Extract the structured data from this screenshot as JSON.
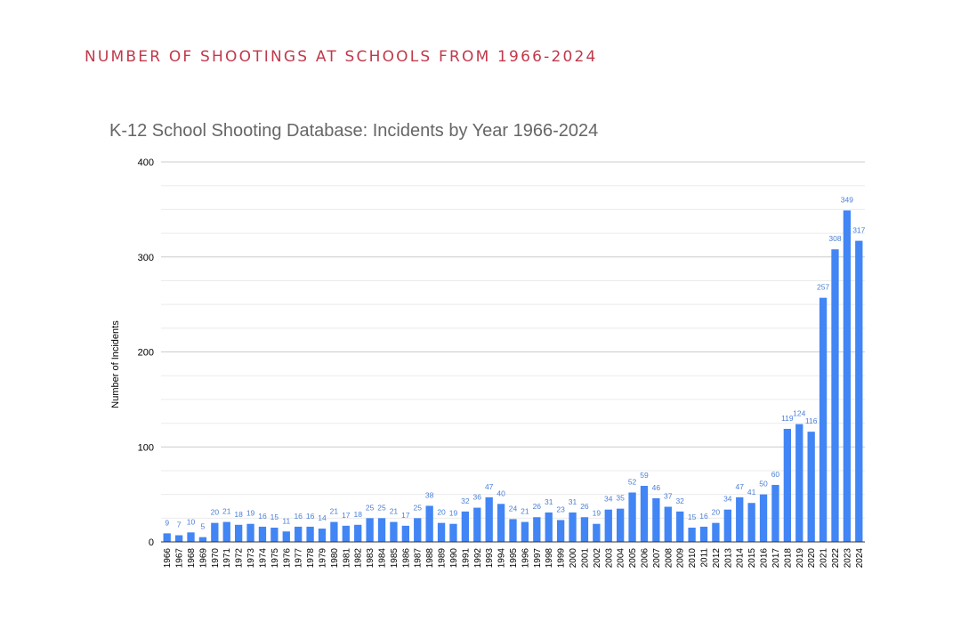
{
  "page": {
    "heading": "NUMBER OF SHOOTINGS AT SCHOOLS FROM 1966-2024"
  },
  "colors": {
    "heading": "#c0394b",
    "bar": "#4285f4",
    "data_label": "#4a7fd6",
    "gridline": "#cccccc",
    "minor_gridline": "#ebebeb",
    "title": "#666666"
  },
  "chart_data": {
    "type": "bar",
    "title": "K-12 School Shooting Database: Incidents by Year 1966-2024",
    "xlabel": "",
    "ylabel": "Number of Incidents",
    "ylim": [
      0,
      400
    ],
    "yticks": [
      0,
      100,
      200,
      300,
      400
    ],
    "grid": true,
    "legend": "none",
    "categories": [
      "1966",
      "1967",
      "1968",
      "1969",
      "1970",
      "1971",
      "1972",
      "1973",
      "1974",
      "1975",
      "1976",
      "1977",
      "1978",
      "1979",
      "1980",
      "1981",
      "1982",
      "1983",
      "1984",
      "1985",
      "1986",
      "1987",
      "1988",
      "1989",
      "1990",
      "1991",
      "1992",
      "1993",
      "1994",
      "1995",
      "1996",
      "1997",
      "1998",
      "1999",
      "2000",
      "2001",
      "2002",
      "2003",
      "2004",
      "2005",
      "2006",
      "2007",
      "2008",
      "2009",
      "2010",
      "2011",
      "2012",
      "2013",
      "2014",
      "2015",
      "2016",
      "2017",
      "2018",
      "2019",
      "2020",
      "2021",
      "2022",
      "2023",
      "2024"
    ],
    "values": [
      9,
      7,
      10,
      5,
      20,
      21,
      18,
      19,
      16,
      15,
      11,
      16,
      16,
      14,
      21,
      17,
      18,
      25,
      25,
      21,
      17,
      25,
      38,
      20,
      19,
      32,
      36,
      47,
      40,
      24,
      21,
      26,
      31,
      23,
      31,
      26,
      19,
      34,
      35,
      52,
      59,
      46,
      37,
      32,
      15,
      16,
      20,
      34,
      47,
      41,
      50,
      60,
      119,
      124,
      116,
      257,
      308,
      349,
      317
    ]
  }
}
